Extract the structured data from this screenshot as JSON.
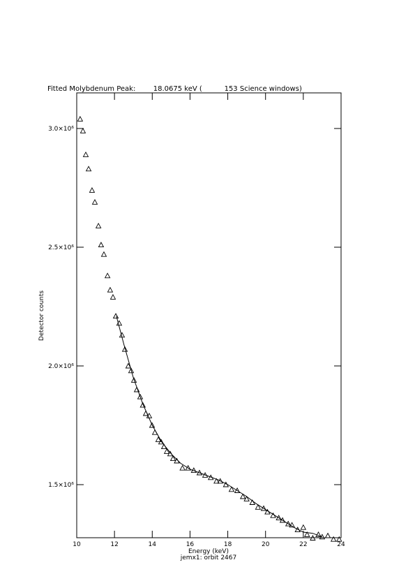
{
  "chart_data": {
    "type": "scatter",
    "title": "Fitted Molybdenum Peak:        18.0675 keV (          153 Science windows)",
    "x_label": "Energy (keV)",
    "subtitle": "jemx1: orbit 2467",
    "y_label": "Detector counts",
    "xlim": [
      10,
      24
    ],
    "xticks": [
      10,
      12,
      14,
      16,
      18,
      20,
      22,
      24
    ],
    "ylim": [
      1276500,
      3150000
    ],
    "yticks": [
      {
        "value": 1500000,
        "label": "1.5×10⁶"
      },
      {
        "value": 2000000,
        "label": "2.0×10⁶"
      },
      {
        "value": 2500000,
        "label": "2.5×10⁶"
      },
      {
        "value": 3000000,
        "label": "3.0×10⁶"
      }
    ],
    "series": [
      {
        "color": "#000000",
        "marker": "triangle",
        "x": [
          10.18,
          10.33,
          10.48,
          10.63,
          10.81,
          10.96,
          11.15,
          11.29,
          11.44,
          11.63,
          11.77,
          11.92,
          12.07,
          12.25,
          12.4,
          12.55,
          12.73,
          12.88,
          13.03,
          13.18,
          13.36,
          13.5,
          13.66,
          13.84,
          13.99,
          14.14,
          14.32,
          14.47,
          14.62,
          14.77,
          14.95,
          15.1,
          15.3,
          15.6,
          15.9,
          16.2,
          16.5,
          16.8,
          17.1,
          17.4,
          17.6,
          17.9,
          18.2,
          18.5,
          18.8,
          19.0,
          19.3,
          19.6,
          19.9,
          20.1,
          20.4,
          20.7,
          20.9,
          21.2,
          21.4,
          21.7,
          22.0,
          22.2,
          22.5,
          22.8,
          23.0,
          23.3,
          23.6,
          23.9
        ],
        "values": [
          3040000,
          2990000,
          2890000,
          2830000,
          2740000,
          2690000,
          2590000,
          2510000,
          2470000,
          2380000,
          2320000,
          2290000,
          2210000,
          2180000,
          2130000,
          2070000,
          2000000,
          1980000,
          1940000,
          1900000,
          1870000,
          1835000,
          1800000,
          1790000,
          1750000,
          1720000,
          1690000,
          1680000,
          1660000,
          1640000,
          1630000,
          1610000,
          1600000,
          1570000,
          1570000,
          1560000,
          1550000,
          1540000,
          1530000,
          1515000,
          1515000,
          1500000,
          1480000,
          1475000,
          1450000,
          1440000,
          1425000,
          1405000,
          1400000,
          1385000,
          1370000,
          1360000,
          1350000,
          1335000,
          1330000,
          1310000,
          1320000,
          1290000,
          1275000,
          1290000,
          1280000,
          1285000,
          1270000,
          1270000
        ]
      },
      {
        "color": "#000000",
        "marker": "line",
        "x": [
          12.1,
          12.5,
          13,
          13.5,
          14,
          14.5,
          15,
          15.5,
          16,
          16.5,
          17,
          17.5,
          18,
          18.5,
          19,
          19.5,
          20,
          20.5,
          21,
          21.5,
          22,
          22.5,
          23
        ],
        "values": [
          2210000,
          2090000,
          1950000,
          1840000,
          1750000,
          1680000,
          1630000,
          1590000,
          1565000,
          1550000,
          1535000,
          1520000,
          1500000,
          1475000,
          1450000,
          1420000,
          1395000,
          1370000,
          1345000,
          1320000,
          1300000,
          1295000,
          1280000
        ]
      }
    ]
  }
}
